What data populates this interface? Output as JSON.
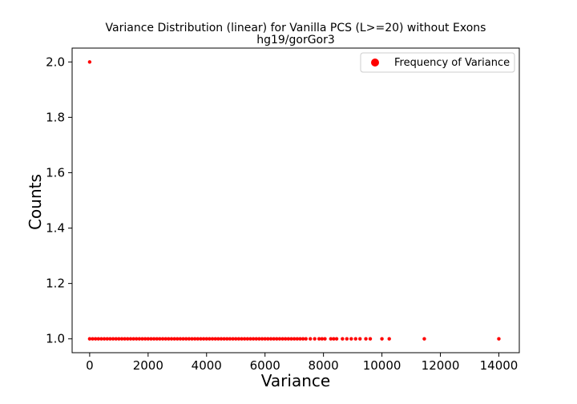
{
  "chart_data": {
    "type": "scatter",
    "title": "Variance Distribution (linear) for Vanilla PCS (L>=20) without Exons",
    "subtitle": "hg19/gorGor3",
    "xlabel": "Variance",
    "ylabel": "Counts",
    "xlim": [
      -600,
      14700
    ],
    "ylim": [
      0.95,
      2.05
    ],
    "xticks": [
      0,
      2000,
      4000,
      6000,
      8000,
      10000,
      12000,
      14000
    ],
    "yticks": [
      1.0,
      1.2,
      1.4,
      1.6,
      1.8,
      2.0
    ],
    "xtick_labels": [
      "0",
      "2000",
      "4000",
      "6000",
      "8000",
      "10000",
      "12000",
      "14000"
    ],
    "ytick_labels": [
      "1.0",
      "1.2",
      "1.4",
      "1.6",
      "1.8",
      "2.0"
    ],
    "grid": false,
    "legend_position": "top-right",
    "series": [
      {
        "name": "Frequency of Variance",
        "color": "#ff0000",
        "points": [
          {
            "x": 0,
            "y": 2
          },
          {
            "x": 0,
            "y": 1
          },
          {
            "x": 100,
            "y": 1
          },
          {
            "x": 200,
            "y": 1
          },
          {
            "x": 300,
            "y": 1
          },
          {
            "x": 400,
            "y": 1
          },
          {
            "x": 500,
            "y": 1
          },
          {
            "x": 600,
            "y": 1
          },
          {
            "x": 700,
            "y": 1
          },
          {
            "x": 800,
            "y": 1
          },
          {
            "x": 900,
            "y": 1
          },
          {
            "x": 1000,
            "y": 1
          },
          {
            "x": 1100,
            "y": 1
          },
          {
            "x": 1200,
            "y": 1
          },
          {
            "x": 1300,
            "y": 1
          },
          {
            "x": 1400,
            "y": 1
          },
          {
            "x": 1500,
            "y": 1
          },
          {
            "x": 1600,
            "y": 1
          },
          {
            "x": 1700,
            "y": 1
          },
          {
            "x": 1800,
            "y": 1
          },
          {
            "x": 1900,
            "y": 1
          },
          {
            "x": 2000,
            "y": 1
          },
          {
            "x": 2100,
            "y": 1
          },
          {
            "x": 2200,
            "y": 1
          },
          {
            "x": 2300,
            "y": 1
          },
          {
            "x": 2400,
            "y": 1
          },
          {
            "x": 2500,
            "y": 1
          },
          {
            "x": 2600,
            "y": 1
          },
          {
            "x": 2700,
            "y": 1
          },
          {
            "x": 2800,
            "y": 1
          },
          {
            "x": 2900,
            "y": 1
          },
          {
            "x": 3000,
            "y": 1
          },
          {
            "x": 3100,
            "y": 1
          },
          {
            "x": 3200,
            "y": 1
          },
          {
            "x": 3300,
            "y": 1
          },
          {
            "x": 3400,
            "y": 1
          },
          {
            "x": 3500,
            "y": 1
          },
          {
            "x": 3600,
            "y": 1
          },
          {
            "x": 3700,
            "y": 1
          },
          {
            "x": 3800,
            "y": 1
          },
          {
            "x": 3900,
            "y": 1
          },
          {
            "x": 4000,
            "y": 1
          },
          {
            "x": 4100,
            "y": 1
          },
          {
            "x": 4200,
            "y": 1
          },
          {
            "x": 4300,
            "y": 1
          },
          {
            "x": 4400,
            "y": 1
          },
          {
            "x": 4500,
            "y": 1
          },
          {
            "x": 4600,
            "y": 1
          },
          {
            "x": 4700,
            "y": 1
          },
          {
            "x": 4800,
            "y": 1
          },
          {
            "x": 4900,
            "y": 1
          },
          {
            "x": 5000,
            "y": 1
          },
          {
            "x": 5100,
            "y": 1
          },
          {
            "x": 5200,
            "y": 1
          },
          {
            "x": 5300,
            "y": 1
          },
          {
            "x": 5400,
            "y": 1
          },
          {
            "x": 5500,
            "y": 1
          },
          {
            "x": 5600,
            "y": 1
          },
          {
            "x": 5700,
            "y": 1
          },
          {
            "x": 5800,
            "y": 1
          },
          {
            "x": 5900,
            "y": 1
          },
          {
            "x": 6000,
            "y": 1
          },
          {
            "x": 6100,
            "y": 1
          },
          {
            "x": 6200,
            "y": 1
          },
          {
            "x": 6300,
            "y": 1
          },
          {
            "x": 6400,
            "y": 1
          },
          {
            "x": 6500,
            "y": 1
          },
          {
            "x": 6600,
            "y": 1
          },
          {
            "x": 6700,
            "y": 1
          },
          {
            "x": 6800,
            "y": 1
          },
          {
            "x": 6900,
            "y": 1
          },
          {
            "x": 7000,
            "y": 1
          },
          {
            "x": 7100,
            "y": 1
          },
          {
            "x": 7200,
            "y": 1
          },
          {
            "x": 7300,
            "y": 1
          },
          {
            "x": 7400,
            "y": 1
          },
          {
            "x": 7550,
            "y": 1
          },
          {
            "x": 7700,
            "y": 1
          },
          {
            "x": 7850,
            "y": 1
          },
          {
            "x": 7950,
            "y": 1
          },
          {
            "x": 8050,
            "y": 1
          },
          {
            "x": 8250,
            "y": 1
          },
          {
            "x": 8350,
            "y": 1
          },
          {
            "x": 8450,
            "y": 1
          },
          {
            "x": 8650,
            "y": 1
          },
          {
            "x": 8800,
            "y": 1
          },
          {
            "x": 8950,
            "y": 1
          },
          {
            "x": 9100,
            "y": 1
          },
          {
            "x": 9250,
            "y": 1
          },
          {
            "x": 9450,
            "y": 1
          },
          {
            "x": 9600,
            "y": 1
          },
          {
            "x": 10000,
            "y": 1
          },
          {
            "x": 10250,
            "y": 1
          },
          {
            "x": 11450,
            "y": 1
          },
          {
            "x": 14000,
            "y": 1
          }
        ]
      }
    ]
  }
}
